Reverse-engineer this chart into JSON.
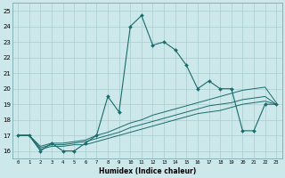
{
  "xlabel": "Humidex (Indice chaleur)",
  "bg_color": "#cce8ea",
  "grid_color": "#aacdd0",
  "line_color": "#1a6b6b",
  "xlim": [
    -0.5,
    23.5
  ],
  "ylim": [
    15.5,
    25.5
  ],
  "xticks": [
    0,
    1,
    2,
    3,
    4,
    5,
    6,
    7,
    8,
    9,
    10,
    11,
    12,
    13,
    14,
    15,
    16,
    17,
    18,
    19,
    20,
    21,
    22,
    23
  ],
  "yticks": [
    16,
    17,
    18,
    19,
    20,
    21,
    22,
    23,
    24,
    25
  ],
  "main_y": [
    17,
    17,
    16,
    16.5,
    16,
    16,
    16.5,
    17,
    19.5,
    18.5,
    24,
    24.7,
    22.8,
    23,
    22.5,
    21.5,
    20,
    20.5,
    20,
    20,
    17.3,
    17.3,
    19,
    19
  ],
  "line2_y": [
    17,
    17,
    16.3,
    16.5,
    16.5,
    16.6,
    16.7,
    17.0,
    17.2,
    17.5,
    17.8,
    18.0,
    18.3,
    18.5,
    18.7,
    18.9,
    19.1,
    19.3,
    19.5,
    19.7,
    19.9,
    20.0,
    20.1,
    19.1
  ],
  "line3_y": [
    17,
    17,
    16.2,
    16.4,
    16.4,
    16.5,
    16.6,
    16.8,
    17.0,
    17.2,
    17.5,
    17.7,
    17.9,
    18.1,
    18.3,
    18.5,
    18.7,
    18.9,
    19.0,
    19.1,
    19.3,
    19.4,
    19.5,
    19.0
  ],
  "line4_y": [
    17,
    17,
    16.1,
    16.3,
    16.3,
    16.4,
    16.4,
    16.6,
    16.8,
    17.0,
    17.2,
    17.4,
    17.6,
    17.8,
    18.0,
    18.2,
    18.4,
    18.5,
    18.6,
    18.8,
    19.0,
    19.1,
    19.2,
    19.0
  ]
}
